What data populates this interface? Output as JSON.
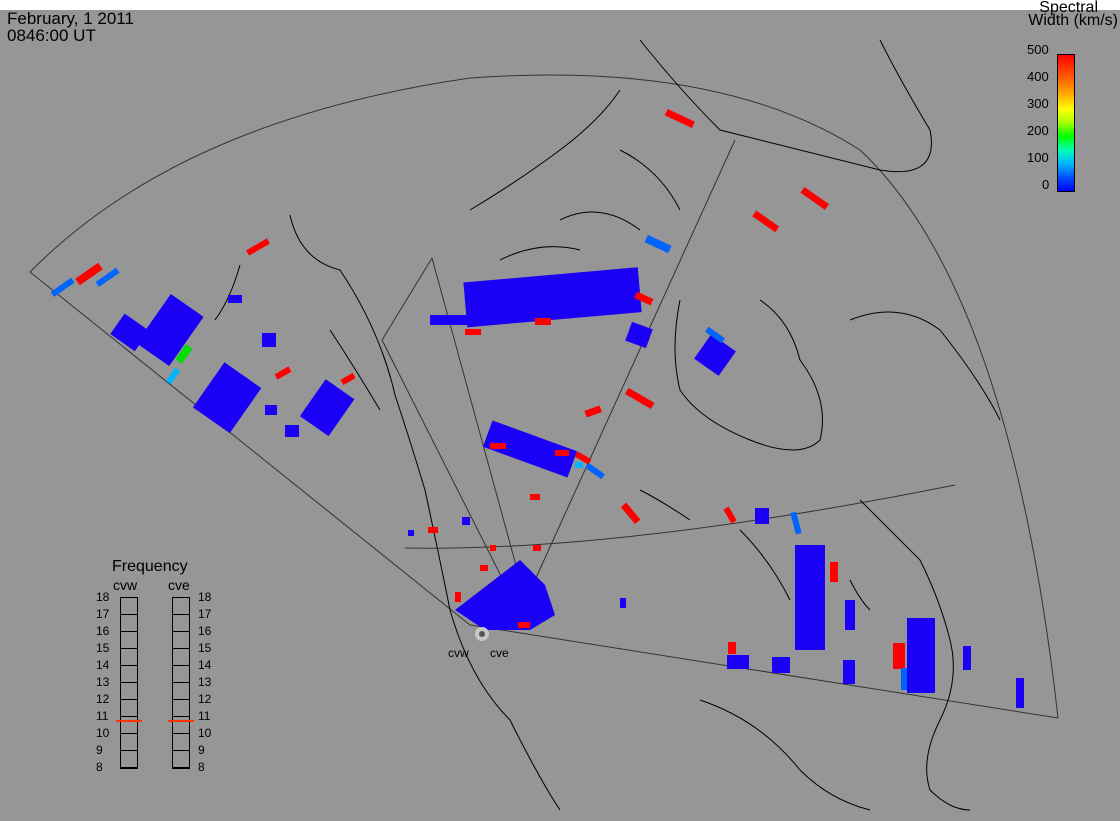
{
  "header": {
    "date": "February, 1 2011",
    "time": "0846:00 UT"
  },
  "colorbar": {
    "title_line1": "Spectral",
    "title_line2": "Width (km/s)",
    "ticks": [
      "500",
      "400",
      "300",
      "200",
      "100",
      "0"
    ],
    "min": 0,
    "max": 500,
    "colors": [
      "#0000ff",
      "#00b4ff",
      "#00ff00",
      "#ffff00",
      "#ff6400",
      "#ff0000"
    ]
  },
  "frequency": {
    "title": "Frequency",
    "radars": [
      "cvw",
      "cve"
    ],
    "ticks": [
      "18",
      "17",
      "16",
      "15",
      "14",
      "13",
      "12",
      "11",
      "10",
      "9",
      "8"
    ],
    "range_min": 8,
    "range_max": 18,
    "cvw_value": 10.7,
    "cve_value": 10.7,
    "marker_color": "#ff3300"
  },
  "sites": {
    "west": "cvw",
    "east": "cve"
  },
  "colors": {
    "background": "#969696",
    "low": "#1a00f5",
    "mid": "#0064ff",
    "high": "#ff0000",
    "cyan": "#00b4ff",
    "green": "#00e000"
  }
}
